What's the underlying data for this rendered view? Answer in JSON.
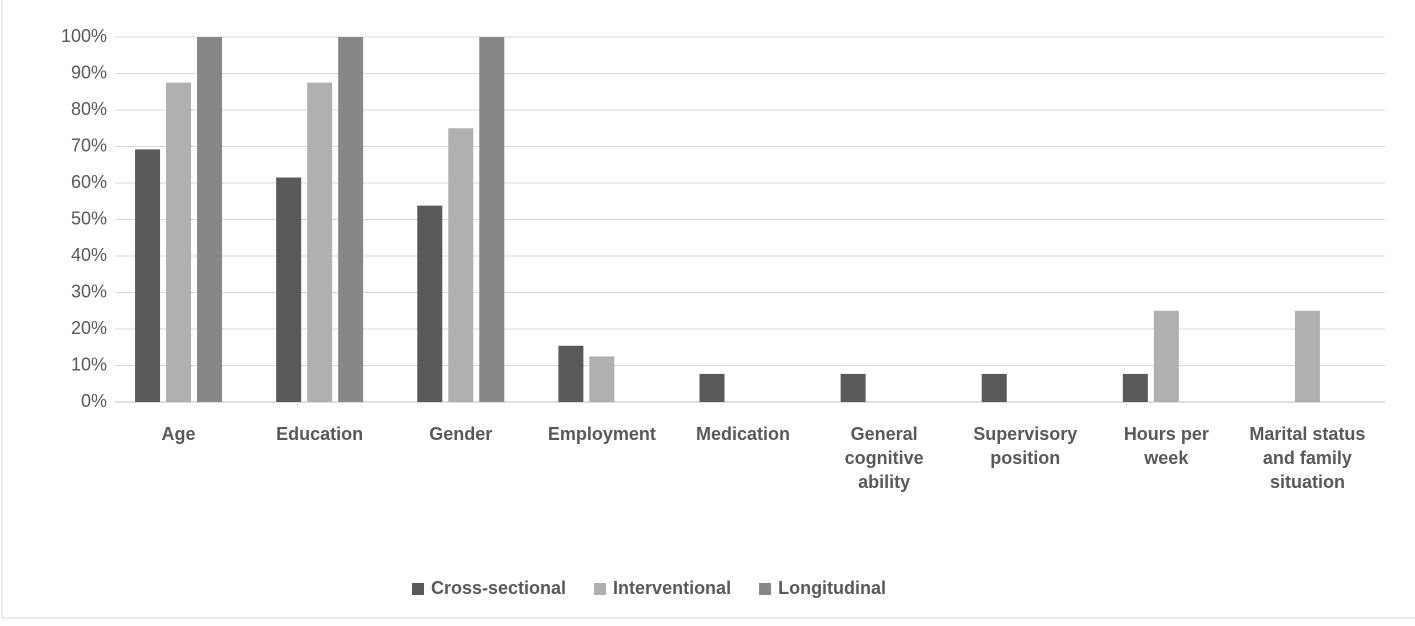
{
  "chart_data": {
    "type": "bar",
    "categories": [
      "Age",
      "Education",
      "Gender",
      "Employment",
      "Medication",
      "General cognitive ability",
      "Supervisory position",
      "Hours per week",
      "Marital status and family situation"
    ],
    "series": [
      {
        "name": "Cross-sectional",
        "color": "#595959",
        "values": [
          69.2,
          61.5,
          53.8,
          15.4,
          7.7,
          7.7,
          7.7,
          7.7,
          0
        ]
      },
      {
        "name": "Interventional",
        "color": "#b0b0b0",
        "values": [
          87.5,
          87.5,
          75,
          12.5,
          0,
          0,
          0,
          25,
          25
        ]
      },
      {
        "name": "Longitudinal",
        "color": "#878787",
        "values": [
          100,
          100,
          100,
          0,
          0,
          0,
          0,
          0,
          0
        ]
      }
    ],
    "ylim": [
      0,
      100
    ],
    "yticks": [
      {
        "value": 0,
        "label": "0%"
      },
      {
        "value": 10,
        "label": "10%"
      },
      {
        "value": 20,
        "label": "20%"
      },
      {
        "value": 30,
        "label": "30%"
      },
      {
        "value": 40,
        "label": "40%"
      },
      {
        "value": 50,
        "label": "50%"
      },
      {
        "value": 60,
        "label": "60%"
      },
      {
        "value": 70,
        "label": "70%"
      },
      {
        "value": 80,
        "label": "80%"
      },
      {
        "value": 90,
        "label": "90%"
      },
      {
        "value": 100,
        "label": "100%"
      }
    ],
    "grid": true,
    "legend": "bottom"
  }
}
